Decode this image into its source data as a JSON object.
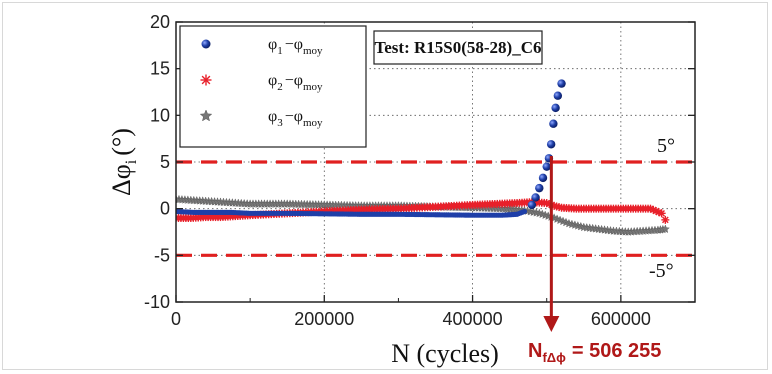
{
  "colors": {
    "series1": "#1f3fa8",
    "series2": "#e8202a",
    "series3": "#777777",
    "threshold": "#e02020",
    "arrow": "#b01818",
    "frame": "#d8d8d8"
  },
  "test_label": "Test: R15S0(58-28)_C6",
  "threshold_upper_label": "5°",
  "threshold_lower_label": "-5°",
  "nf_label": {
    "prefix": "N",
    "subscript": "fΔϕ",
    "value": "=  506 255"
  },
  "chart_data": {
    "type": "scatter",
    "xlabel": "N (cycles)",
    "ylabel": {
      "main": "Δφ",
      "sub": "i",
      "unit": "(°)"
    },
    "xlim": [
      0,
      700000
    ],
    "ylim": [
      -10,
      20
    ],
    "xticks": [
      {
        "value": 0,
        "label": "0"
      },
      {
        "value": 200000,
        "label": "200000"
      },
      {
        "value": 400000,
        "label": "400000"
      },
      {
        "value": 600000,
        "label": "600000"
      }
    ],
    "yticks": [
      {
        "value": -10,
        "label": "-10"
      },
      {
        "value": -5,
        "label": "-5"
      },
      {
        "value": 0,
        "label": "0"
      },
      {
        "value": 5,
        "label": "5"
      },
      {
        "value": 10,
        "label": "10"
      },
      {
        "value": 15,
        "label": "15"
      },
      {
        "value": 20,
        "label": "20"
      }
    ],
    "grid": true,
    "legend_position": "top-left",
    "thresholds": [
      5,
      -5
    ],
    "failure_cycle": 506255,
    "series": [
      {
        "legend": {
          "phi": "φ",
          "i": "1",
          "minus": "−",
          "moy": "moy"
        },
        "marker": "circle",
        "color": "#1f3fa8",
        "x": [
          0,
          25000,
          50000,
          75000,
          100000,
          150000,
          200000,
          250000,
          300000,
          350000,
          400000,
          440000,
          460000,
          470000,
          480000,
          485000,
          490000,
          495000,
          500000,
          503000,
          506000,
          509000,
          512000,
          515000,
          520000
        ],
        "y": [
          -0.3,
          -0.4,
          -0.4,
          -0.4,
          -0.5,
          -0.5,
          -0.55,
          -0.6,
          -0.6,
          -0.65,
          -0.7,
          -0.7,
          -0.6,
          -0.3,
          0.4,
          1.2,
          2.2,
          3.3,
          4.5,
          5.4,
          6.9,
          9.1,
          10.8,
          12.1,
          13.4
        ]
      },
      {
        "legend": {
          "phi": "φ",
          "i": "2",
          "minus": "−",
          "moy": "moy"
        },
        "marker": "star",
        "color": "#e8202a",
        "x": [
          0,
          20000,
          40000,
          60000,
          80000,
          100000,
          150000,
          200000,
          250000,
          300000,
          350000,
          400000,
          430000,
          460000,
          480000,
          500000,
          510000,
          520000,
          540000,
          560000,
          580000,
          600000,
          620000,
          640000,
          655000,
          660000
        ],
        "y": [
          -1.0,
          -1.0,
          -0.9,
          -0.9,
          -0.8,
          -0.7,
          -0.5,
          -0.3,
          -0.1,
          0.0,
          0.2,
          0.4,
          0.5,
          0.6,
          0.7,
          0.6,
          0.3,
          0.1,
          0.0,
          0.0,
          0.0,
          0.0,
          0.0,
          0.0,
          -0.5,
          -1.2
        ]
      },
      {
        "legend": {
          "phi": "φ",
          "i": "3",
          "minus": "−",
          "moy": "moy"
        },
        "marker": "star",
        "color": "#777777",
        "x": [
          0,
          20000,
          40000,
          60000,
          80000,
          100000,
          150000,
          200000,
          250000,
          300000,
          350000,
          400000,
          440000,
          470000,
          490000,
          510000,
          530000,
          550000,
          570000,
          590000,
          610000,
          630000,
          650000,
          660000
        ],
        "y": [
          1.0,
          0.9,
          0.8,
          0.7,
          0.6,
          0.5,
          0.5,
          0.4,
          0.3,
          0.3,
          0.2,
          0.1,
          0.0,
          -0.2,
          -0.5,
          -1.0,
          -1.6,
          -2.0,
          -2.2,
          -2.4,
          -2.5,
          -2.4,
          -2.3,
          -2.2
        ]
      }
    ]
  }
}
